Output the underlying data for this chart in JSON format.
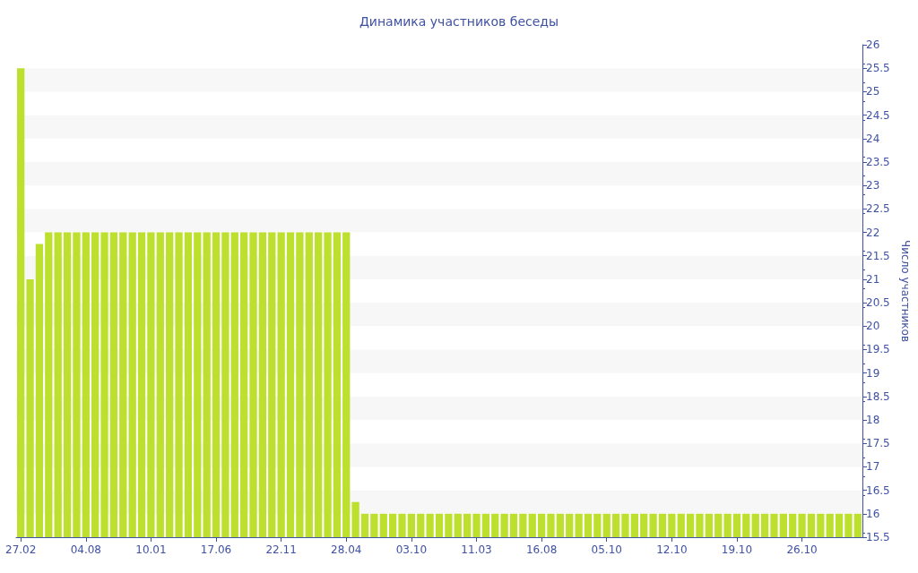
{
  "chart_data": {
    "type": "bar",
    "title": "Динамика участников беседы",
    "ylabel": "Число участников",
    "categories": [
      "27.02",
      null,
      null,
      null,
      null,
      null,
      null,
      "04.08",
      null,
      null,
      null,
      null,
      null,
      null,
      "10.01",
      null,
      null,
      null,
      null,
      null,
      null,
      "17.06",
      null,
      null,
      null,
      null,
      null,
      null,
      "22.11",
      null,
      null,
      null,
      null,
      null,
      null,
      "28.04",
      null,
      null,
      null,
      null,
      null,
      null,
      "03.10",
      null,
      null,
      null,
      null,
      null,
      null,
      "11.03",
      null,
      null,
      null,
      null,
      null,
      null,
      "16.08",
      null,
      null,
      null,
      null,
      null,
      null,
      "05.10",
      null,
      null,
      null,
      null,
      null,
      null,
      "12.10",
      null,
      null,
      null,
      null,
      null,
      null,
      "19.10",
      null,
      null,
      null,
      null,
      null,
      null,
      "26.10",
      null,
      null,
      null,
      null,
      null,
      null
    ],
    "series": [
      {
        "color": "#bde02f",
        "values": [
          25.5,
          21,
          21.75,
          22,
          22,
          22,
          22,
          22,
          22,
          22,
          22,
          22,
          22,
          22,
          22,
          22,
          22,
          22,
          22,
          22,
          22,
          22,
          22,
          22,
          22,
          22,
          22,
          22,
          22,
          22,
          22,
          22,
          22,
          22,
          22,
          22,
          16.25,
          16,
          16,
          16,
          16,
          16,
          16,
          16,
          16,
          16,
          16,
          16,
          16,
          16,
          16,
          16,
          16,
          16,
          16,
          16,
          16,
          16,
          16,
          16,
          16,
          16,
          16,
          16,
          16,
          16,
          16,
          16,
          16,
          16,
          16,
          16,
          16,
          16,
          16,
          16,
          16,
          16,
          16,
          16,
          16,
          16,
          16,
          16,
          16,
          16,
          16,
          16,
          16,
          16,
          16
        ]
      }
    ],
    "ylim": [
      15.5,
      26
    ],
    "yticks": [
      15.5,
      16,
      16.5,
      17,
      17.5,
      18,
      18.5,
      19,
      19.5,
      20,
      20.5,
      21,
      21.5,
      22,
      22.5,
      23,
      23.5,
      24,
      24.5,
      25,
      25.5,
      26
    ],
    "grid": false
  }
}
